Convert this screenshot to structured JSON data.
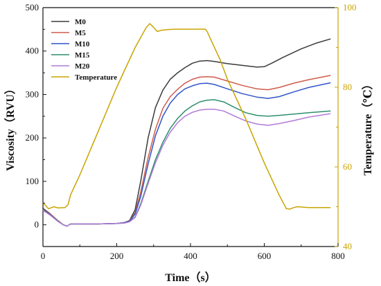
{
  "chart_data": {
    "type": "line",
    "xlabel": "Time（s）",
    "ylabel": "Viscosity（RVU）",
    "y2label": "Temperature（℃）",
    "xlim": [
      0,
      800
    ],
    "ylim": [
      -50,
      500
    ],
    "y2lim": [
      40,
      100
    ],
    "xticks": [
      0,
      200,
      400,
      600,
      800
    ],
    "yticks": [
      0,
      100,
      200,
      300,
      400,
      500
    ],
    "y2ticks": [
      40,
      60,
      80,
      100
    ],
    "legend_position": "top-left",
    "grid": false,
    "series": [
      {
        "name": "M0",
        "axis": "left",
        "color": "#3a3a3a",
        "points": [
          [
            0,
            38
          ],
          [
            20,
            25
          ],
          [
            40,
            10
          ],
          [
            55,
            0
          ],
          [
            65,
            -3
          ],
          [
            75,
            2
          ],
          [
            100,
            2
          ],
          [
            150,
            2
          ],
          [
            200,
            3
          ],
          [
            220,
            5
          ],
          [
            235,
            10
          ],
          [
            250,
            35
          ],
          [
            265,
            100
          ],
          [
            285,
            200
          ],
          [
            305,
            270
          ],
          [
            325,
            310
          ],
          [
            345,
            335
          ],
          [
            365,
            350
          ],
          [
            385,
            362
          ],
          [
            405,
            372
          ],
          [
            425,
            377
          ],
          [
            445,
            378
          ],
          [
            465,
            376
          ],
          [
            500,
            371
          ],
          [
            540,
            367
          ],
          [
            580,
            363
          ],
          [
            600,
            364
          ],
          [
            620,
            372
          ],
          [
            650,
            385
          ],
          [
            700,
            405
          ],
          [
            740,
            418
          ],
          [
            780,
            428
          ]
        ]
      },
      {
        "name": "M5",
        "axis": "left",
        "color": "#d15a4a",
        "points": [
          [
            0,
            36
          ],
          [
            20,
            24
          ],
          [
            40,
            10
          ],
          [
            55,
            0
          ],
          [
            65,
            -3
          ],
          [
            75,
            2
          ],
          [
            100,
            2
          ],
          [
            150,
            2
          ],
          [
            200,
            3
          ],
          [
            220,
            5
          ],
          [
            235,
            9
          ],
          [
            250,
            28
          ],
          [
            265,
            75
          ],
          [
            285,
            155
          ],
          [
            305,
            220
          ],
          [
            325,
            268
          ],
          [
            345,
            295
          ],
          [
            365,
            312
          ],
          [
            385,
            326
          ],
          [
            405,
            335
          ],
          [
            425,
            340
          ],
          [
            445,
            341
          ],
          [
            465,
            340
          ],
          [
            500,
            331
          ],
          [
            540,
            321
          ],
          [
            580,
            313
          ],
          [
            610,
            311
          ],
          [
            640,
            316
          ],
          [
            680,
            326
          ],
          [
            720,
            334
          ],
          [
            780,
            344
          ]
        ]
      },
      {
        "name": "M10",
        "axis": "left",
        "color": "#2f55c9",
        "points": [
          [
            0,
            35
          ],
          [
            20,
            23
          ],
          [
            40,
            9
          ],
          [
            55,
            0
          ],
          [
            65,
            -3
          ],
          [
            75,
            2
          ],
          [
            100,
            2
          ],
          [
            150,
            2
          ],
          [
            200,
            3
          ],
          [
            220,
            5
          ],
          [
            235,
            8
          ],
          [
            250,
            25
          ],
          [
            265,
            65
          ],
          [
            285,
            140
          ],
          [
            305,
            205
          ],
          [
            325,
            250
          ],
          [
            345,
            280
          ],
          [
            365,
            300
          ],
          [
            385,
            313
          ],
          [
            405,
            320
          ],
          [
            425,
            325
          ],
          [
            445,
            326
          ],
          [
            465,
            323
          ],
          [
            500,
            313
          ],
          [
            540,
            302
          ],
          [
            580,
            294
          ],
          [
            610,
            291
          ],
          [
            640,
            295
          ],
          [
            680,
            306
          ],
          [
            720,
            316
          ],
          [
            780,
            327
          ]
        ]
      },
      {
        "name": "M15",
        "axis": "left",
        "color": "#2c8f6b",
        "points": [
          [
            0,
            34
          ],
          [
            20,
            22
          ],
          [
            40,
            9
          ],
          [
            55,
            0
          ],
          [
            65,
            -3
          ],
          [
            75,
            2
          ],
          [
            100,
            2
          ],
          [
            150,
            2
          ],
          [
            200,
            3
          ],
          [
            220,
            4
          ],
          [
            235,
            7
          ],
          [
            250,
            18
          ],
          [
            265,
            48
          ],
          [
            285,
            100
          ],
          [
            305,
            150
          ],
          [
            325,
            190
          ],
          [
            345,
            222
          ],
          [
            365,
            245
          ],
          [
            385,
            262
          ],
          [
            405,
            274
          ],
          [
            425,
            283
          ],
          [
            445,
            287
          ],
          [
            465,
            288
          ],
          [
            490,
            283
          ],
          [
            520,
            270
          ],
          [
            550,
            258
          ],
          [
            580,
            252
          ],
          [
            610,
            250
          ],
          [
            640,
            252
          ],
          [
            680,
            255
          ],
          [
            720,
            258
          ],
          [
            780,
            262
          ]
        ]
      },
      {
        "name": "M20",
        "axis": "left",
        "color": "#b17ad6",
        "points": [
          [
            0,
            33
          ],
          [
            20,
            22
          ],
          [
            40,
            8
          ],
          [
            55,
            0
          ],
          [
            65,
            -3
          ],
          [
            75,
            2
          ],
          [
            100,
            2
          ],
          [
            150,
            2
          ],
          [
            200,
            3
          ],
          [
            220,
            4
          ],
          [
            235,
            7
          ],
          [
            250,
            17
          ],
          [
            265,
            45
          ],
          [
            285,
            95
          ],
          [
            305,
            143
          ],
          [
            325,
            183
          ],
          [
            345,
            213
          ],
          [
            365,
            235
          ],
          [
            385,
            250
          ],
          [
            405,
            259
          ],
          [
            425,
            264
          ],
          [
            445,
            266
          ],
          [
            465,
            266
          ],
          [
            490,
            262
          ],
          [
            520,
            250
          ],
          [
            550,
            239
          ],
          [
            580,
            232
          ],
          [
            610,
            229
          ],
          [
            640,
            233
          ],
          [
            680,
            240
          ],
          [
            720,
            248
          ],
          [
            780,
            256
          ]
        ]
      },
      {
        "name": "Temperature",
        "axis": "right",
        "color": "#c9a400",
        "points": [
          [
            0,
            51
          ],
          [
            15,
            49.5
          ],
          [
            30,
            50
          ],
          [
            40,
            49.7
          ],
          [
            60,
            49.8
          ],
          [
            68,
            50.5
          ],
          [
            75,
            53
          ],
          [
            100,
            58
          ],
          [
            150,
            69
          ],
          [
            200,
            80
          ],
          [
            250,
            90
          ],
          [
            280,
            95
          ],
          [
            290,
            96
          ],
          [
            300,
            95
          ],
          [
            310,
            94
          ],
          [
            320,
            94.3
          ],
          [
            340,
            94.5
          ],
          [
            360,
            94.6
          ],
          [
            400,
            94.6
          ],
          [
            420,
            94.6
          ],
          [
            440,
            94.6
          ],
          [
            445,
            94
          ],
          [
            460,
            91
          ],
          [
            480,
            87
          ],
          [
            500,
            82
          ],
          [
            550,
            72
          ],
          [
            600,
            61
          ],
          [
            640,
            53
          ],
          [
            660,
            49.5
          ],
          [
            670,
            49.4
          ],
          [
            680,
            49.8
          ],
          [
            690,
            50
          ],
          [
            720,
            49.8
          ],
          [
            780,
            49.8
          ]
        ]
      }
    ]
  }
}
